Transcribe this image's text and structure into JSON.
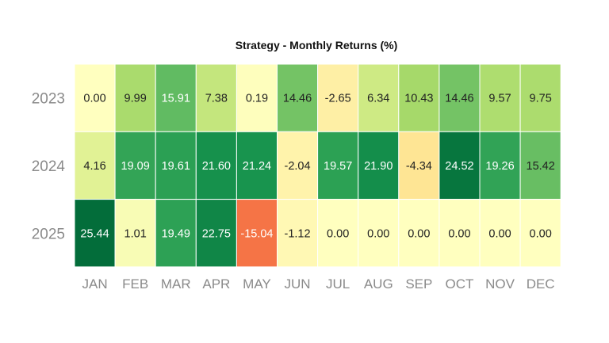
{
  "chart_data": {
    "type": "heatmap",
    "title": "Strategy - Monthly Returns (%)",
    "xlabel": "",
    "ylabel": "",
    "months": [
      "JAN",
      "FEB",
      "MAR",
      "APR",
      "MAY",
      "JUN",
      "JUL",
      "AUG",
      "SEP",
      "OCT",
      "NOV",
      "DEC"
    ],
    "years": [
      "2023",
      "2024",
      "2025"
    ],
    "values": [
      [
        0.0,
        9.99,
        15.91,
        7.38,
        0.19,
        14.46,
        -2.65,
        6.34,
        10.43,
        14.46,
        9.57,
        9.75
      ],
      [
        4.16,
        19.09,
        19.61,
        21.6,
        21.24,
        -2.04,
        19.57,
        21.9,
        -4.34,
        24.52,
        19.26,
        15.42
      ],
      [
        25.44,
        1.01,
        19.49,
        22.75,
        -15.04,
        -1.12,
        0.0,
        0.0,
        0.0,
        0.0,
        0.0,
        0.0
      ]
    ],
    "labels": [
      [
        "0.00",
        "9.99",
        "15.91",
        "7.38",
        "0.19",
        "14.46",
        "-2.65",
        "6.34",
        "10.43",
        "14.46",
        "9.57",
        "9.75"
      ],
      [
        "4.16",
        "19.09",
        "19.61",
        "21.60",
        "21.24",
        "-2.04",
        "19.57",
        "21.90",
        "-4.34",
        "24.52",
        "19.26",
        "15.42"
      ],
      [
        "25.44",
        "1.01",
        "19.49",
        "22.75",
        "-15.04",
        "-1.12",
        "0.00",
        "0.00",
        "0.00",
        "0.00",
        "0.00",
        "0.00"
      ]
    ],
    "colorscale": "RdYlGn",
    "center": 0,
    "vmin": -26,
    "vmax": 26,
    "colormap_stops": [
      "#a50026",
      "#d73027",
      "#f46d43",
      "#fdae61",
      "#fee08b",
      "#ffffbf",
      "#d9ef8b",
      "#a6d96a",
      "#66bd63",
      "#1a9850",
      "#006837"
    ],
    "grid_line_color": "#ffffff",
    "text_dark": "#222222",
    "text_light": "#ffffff"
  }
}
